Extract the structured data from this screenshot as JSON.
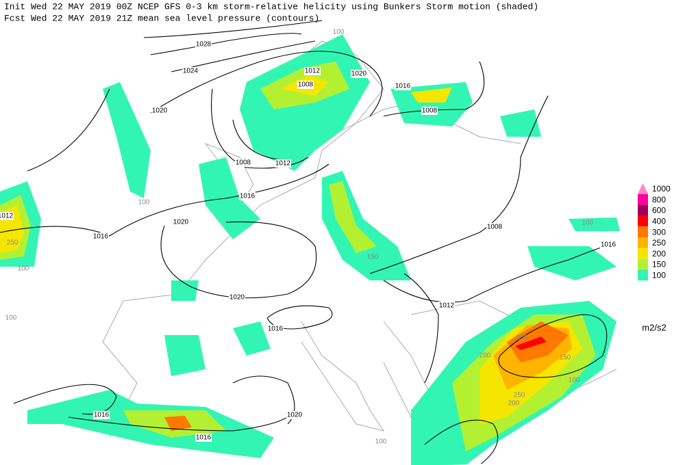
{
  "header": {
    "line1": "Init  Wed 22 MAY 2019 00Z  NCEP GFS 0-3 km storm-relative helicity using Bunkers Storm motion (shaded)",
    "line2": "Fcst Wed 22 MAY 2019 21Z  mean sea level pressure (contours)"
  },
  "legend": {
    "labels": [
      "1000",
      "800",
      "600",
      "400",
      "300",
      "250",
      "200",
      "150",
      "100"
    ],
    "colors": [
      "#ff88bb",
      "#ff00a0",
      "#a0005a",
      "#ff0000",
      "#ff7800",
      "#ffb400",
      "#f5e600",
      "#b4f032",
      "#32f5b4"
    ],
    "units": "m2/s2"
  },
  "contour_labels": [
    "1028",
    "1024",
    "1020",
    "1012",
    "1008",
    "1020",
    "1016",
    "1008",
    "1008",
    "1012",
    "1016",
    "1012",
    "1020",
    "1016",
    "1008",
    "1016",
    "1020",
    "1012",
    "1016",
    "1016",
    "1016",
    "1020"
  ],
  "shade_labels": [
    "100",
    "250",
    "100",
    "100",
    "100",
    "100",
    "150",
    "250",
    "200",
    "150",
    "250",
    "200",
    "100",
    "100"
  ]
}
